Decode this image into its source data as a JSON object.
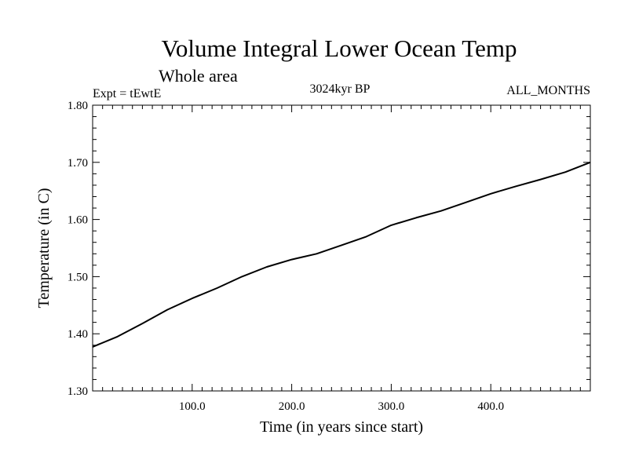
{
  "chart_data": {
    "type": "line",
    "title": "Volume Integral Lower Ocean Temp",
    "subtitle": "Whole area",
    "annotation_left": "Expt = tEwtE",
    "annotation_center": "3024kyr BP",
    "annotation_right": "ALL_MONTHS",
    "xlabel": "Time (in years since start)",
    "ylabel": "Temperature (in C)",
    "xlim": [
      0,
      500
    ],
    "ylim": [
      1.3,
      1.8
    ],
    "xticks": [
      {
        "value": 100,
        "label": "100.0"
      },
      {
        "value": 200,
        "label": "200.0"
      },
      {
        "value": 300,
        "label": "300.0"
      },
      {
        "value": 400,
        "label": "400.0"
      }
    ],
    "yticks": [
      {
        "value": 1.3,
        "label": "1.30"
      },
      {
        "value": 1.4,
        "label": "1.40"
      },
      {
        "value": 1.5,
        "label": "1.50"
      },
      {
        "value": 1.6,
        "label": "1.60"
      },
      {
        "value": 1.7,
        "label": "1.70"
      },
      {
        "value": 1.8,
        "label": "1.80"
      }
    ],
    "grid": false,
    "series": [
      {
        "name": "Lower Ocean Temp",
        "x": [
          0,
          25,
          50,
          75,
          100,
          125,
          150,
          175,
          200,
          225,
          250,
          275,
          300,
          325,
          350,
          375,
          400,
          425,
          450,
          475,
          500
        ],
        "values": [
          1.377,
          1.395,
          1.418,
          1.442,
          1.462,
          1.48,
          1.5,
          1.517,
          1.53,
          1.54,
          1.555,
          1.57,
          1.59,
          1.603,
          1.615,
          1.63,
          1.645,
          1.658,
          1.67,
          1.683,
          1.7
        ]
      }
    ]
  }
}
